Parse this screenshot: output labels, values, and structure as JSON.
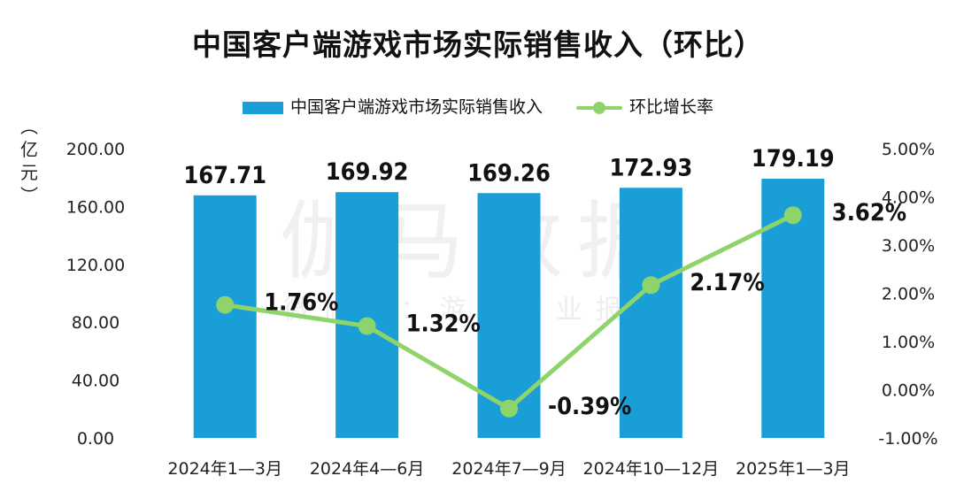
{
  "title": "中国客户端游戏市场实际销售收入（环比）",
  "ylabel_chars": [
    "︵",
    "亿",
    "元",
    "︶"
  ],
  "watermark": {
    "main": "伽马数据",
    "sub": "微信号：游戏产业报告"
  },
  "colors": {
    "bar": "#1a9ed7",
    "line": "#8fd46a"
  },
  "chart_data": {
    "type": "bar",
    "categories": [
      "2024年1—3月",
      "2024年4—6月",
      "2024年7—9月",
      "2024年10—12月",
      "2025年1—3月"
    ],
    "series": [
      {
        "name": "中国客户端游戏市场实际销售收入",
        "type": "bar",
        "axis": "left",
        "values": [
          167.71,
          169.92,
          169.26,
          172.93,
          179.19
        ],
        "labels": [
          "167.71",
          "169.92",
          "169.26",
          "172.93",
          "179.19"
        ]
      },
      {
        "name": "环比增长率",
        "type": "line",
        "axis": "right",
        "values": [
          1.76,
          1.32,
          -0.39,
          2.17,
          3.62
        ],
        "labels": [
          "1.76%",
          "1.32%",
          "-0.39%",
          "2.17%",
          "3.62%"
        ]
      }
    ],
    "ylim_left": [
      0,
      200
    ],
    "yticks_left": [
      "0.00",
      "40.00",
      "80.00",
      "120.00",
      "160.00",
      "200.00"
    ],
    "ylim_right": [
      -1,
      5
    ],
    "yticks_right": [
      "-1.00%",
      "0.00%",
      "1.00%",
      "2.00%",
      "3.00%",
      "4.00%",
      "5.00%"
    ],
    "grid": false,
    "legend": "top"
  }
}
